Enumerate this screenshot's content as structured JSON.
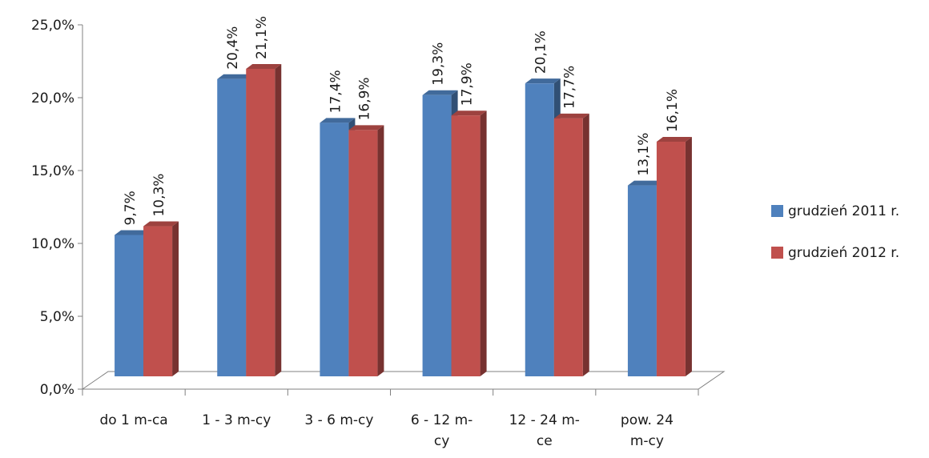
{
  "chart_data": {
    "type": "bar",
    "title": "",
    "xlabel": "",
    "ylabel": "",
    "categories": [
      [
        "do 1 m-ca"
      ],
      [
        "1 - 3 m-cy"
      ],
      [
        "3 - 6 m-cy"
      ],
      [
        "6 - 12 m-",
        "cy"
      ],
      [
        "12 - 24 m-",
        "ce"
      ],
      [
        "pow. 24",
        "m-cy"
      ]
    ],
    "series": [
      {
        "name": "grudzień 2011 r.",
        "color": "#4f81bd",
        "values": [
          9.7,
          20.4,
          17.4,
          19.3,
          20.1,
          13.1
        ],
        "labels": [
          "9,7%",
          "20,4%",
          "17,4%",
          "19,3%",
          "20,1%",
          "13,1%"
        ]
      },
      {
        "name": "grudzień 2012 r.",
        "color": "#c0504d",
        "values": [
          10.3,
          21.1,
          16.9,
          17.9,
          17.7,
          16.1
        ],
        "labels": [
          "10,3%",
          "21,1%",
          "16,9%",
          "17,9%",
          "17,7%",
          "16,1%"
        ]
      }
    ],
    "yticks": [
      0,
      5,
      10,
      15,
      20,
      25
    ],
    "ytick_labels": [
      "0,0%",
      "5,0%",
      "10,0%",
      "15,0%",
      "20,0%",
      "25,0%"
    ],
    "ylim": [
      0,
      25
    ],
    "legend_position": "right",
    "grid": false
  }
}
